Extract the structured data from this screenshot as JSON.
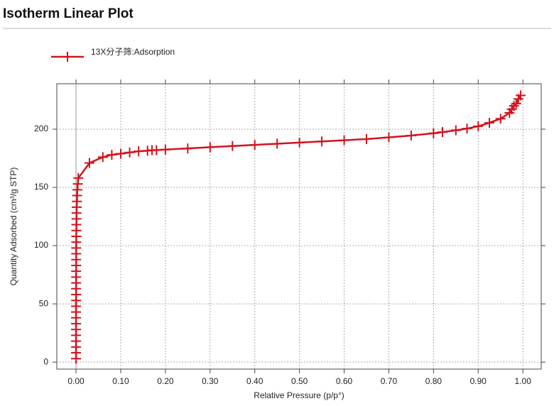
{
  "chart_data": {
    "type": "line",
    "title": "Isotherm Linear Plot",
    "xlabel": "Relative Pressure (p/p°)",
    "ylabel": "Quantity Adsorbed (cm³/g STP)",
    "xlim": [
      -0.043,
      1.041
    ],
    "ylim": [
      -6,
      239
    ],
    "grid": true,
    "xticks": [
      {
        "value": 0,
        "label": "0.00"
      },
      {
        "value": 0.1,
        "label": "0.10"
      },
      {
        "value": 0.2,
        "label": "0.20"
      },
      {
        "value": 0.3,
        "label": "0.30"
      },
      {
        "value": 0.4,
        "label": "0.40"
      },
      {
        "value": 0.5,
        "label": "0.50"
      },
      {
        "value": 0.6,
        "label": "0.60"
      },
      {
        "value": 0.7,
        "label": "0.70"
      },
      {
        "value": 0.8,
        "label": "0.80"
      },
      {
        "value": 0.9,
        "label": "0.90"
      },
      {
        "value": 1,
        "label": "1.00"
      }
    ],
    "yticks": [
      0,
      50,
      100,
      150,
      200
    ],
    "legend": "top-left",
    "series": [
      {
        "name": "13X分子筛:Adsorption",
        "color": "#d2141e",
        "x": [
          0,
          0,
          0,
          0,
          0,
          0,
          0,
          0,
          0,
          0,
          0.0001,
          0.0001,
          0.0001,
          0.0002,
          0.0002,
          0.0002,
          0.0003,
          0.0003,
          0.0004,
          0.0004,
          0.0005,
          0.0006,
          0.0007,
          0.0008,
          0.001,
          0.0012,
          0.0015,
          0.002,
          0.0025,
          0.003,
          0.004,
          0.005,
          0.03,
          0.06,
          0.08,
          0.1,
          0.12,
          0.14,
          0.16,
          0.17,
          0.18,
          0.2,
          0.25,
          0.3,
          0.35,
          0.4,
          0.45,
          0.5,
          0.55,
          0.6,
          0.65,
          0.7,
          0.75,
          0.8,
          0.82,
          0.85,
          0.875,
          0.9,
          0.925,
          0.95,
          0.97,
          0.975,
          0.98,
          0.985,
          0.99,
          0.995
        ],
        "values": [
          3,
          8,
          13,
          18,
          23,
          28,
          33,
          38,
          43,
          48,
          53,
          58,
          63,
          68,
          73,
          78,
          83,
          88,
          93,
          98,
          103,
          108,
          113,
          118,
          123,
          128,
          133,
          138,
          143,
          148,
          153,
          158,
          171,
          176,
          178,
          179,
          180,
          181,
          181.5,
          182,
          182,
          182.5,
          183.5,
          184.5,
          185.5,
          186.5,
          187.5,
          188.5,
          189.5,
          190.5,
          191.5,
          193,
          194.5,
          196.5,
          197.5,
          199,
          200.5,
          202.5,
          205.5,
          209,
          214,
          217,
          220,
          222,
          226,
          229
        ]
      }
    ]
  }
}
